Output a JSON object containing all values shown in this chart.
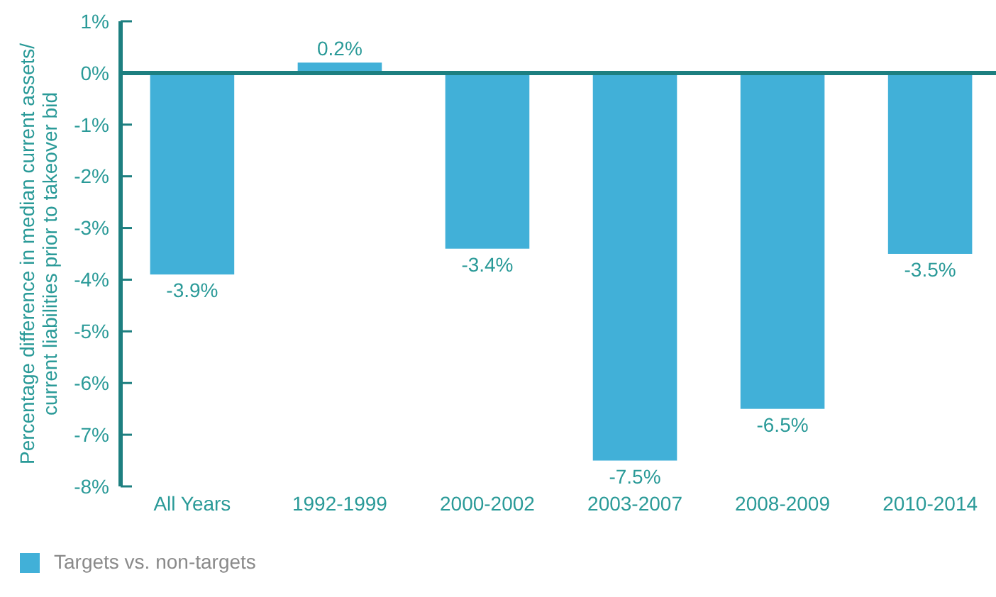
{
  "chart_data": {
    "type": "bar",
    "ylabel": "Percentage difference in median current assets/\ncurrent  liabilities prior to takeover bid",
    "categories": [
      "All Years",
      "1992-1999",
      "2000-2002",
      "2003-2007",
      "2008-2009",
      "2010-2014"
    ],
    "series": [
      {
        "name": "Targets vs. non-targets",
        "color": "#41b0d8",
        "values": [
          -3.9,
          0.2,
          -3.4,
          -7.5,
          -6.5,
          -3.5
        ],
        "value_labels": [
          "-3.9%",
          "0.2%",
          "-3.4%",
          "-7.5%",
          "-6.5%",
          "-3.5%"
        ]
      }
    ],
    "ylim": [
      -8,
      1
    ],
    "yticks": [
      {
        "value": 1,
        "label": "1%"
      },
      {
        "value": 0,
        "label": "0%"
      },
      {
        "value": -1,
        "label": "-1%"
      },
      {
        "value": -2,
        "label": "-2%"
      },
      {
        "value": -3,
        "label": "-3%"
      },
      {
        "value": -4,
        "label": "-4%"
      },
      {
        "value": -5,
        "label": "-5%"
      },
      {
        "value": -6,
        "label": "-6%"
      },
      {
        "value": -7,
        "label": "-7%"
      },
      {
        "value": -8,
        "label": "-8%"
      }
    ],
    "ref_lines": [
      {
        "axis": "y",
        "value": 0,
        "color": "#1d7f80"
      }
    ],
    "grid": false,
    "legend": "bottom left"
  }
}
